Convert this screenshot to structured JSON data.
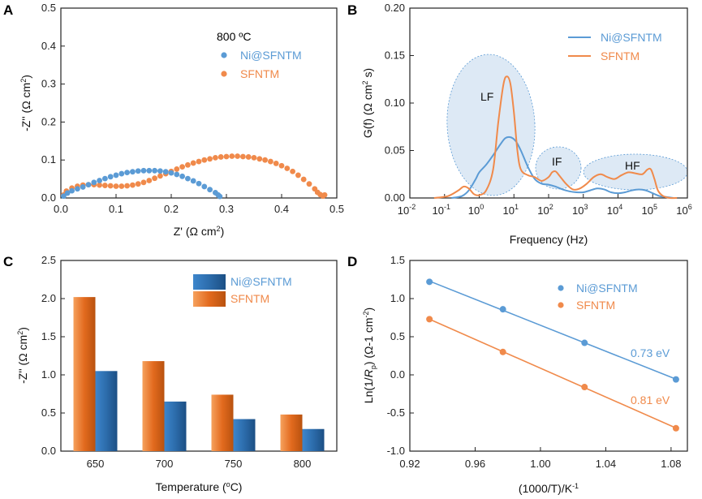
{
  "colors": {
    "ni": "#5b9bd5",
    "sf": "#f08a4b",
    "region": "#dde9f5",
    "bar_blue": "#2e6fb0",
    "bar_orange": "#e8752a"
  },
  "chart_data": [
    {
      "panel": "A",
      "type": "scatter",
      "xlabel": "Z' (Ω cm",
      "xlabel_sup": "2",
      "xlabel_end": ")",
      "ylabel": "-Z'' (Ω cm",
      "ylabel_sup": "2",
      "ylabel_end": ")",
      "xlim": [
        0,
        0.5
      ],
      "ylim": [
        0,
        0.5
      ],
      "xticks": [
        0,
        0.1,
        0.2,
        0.3,
        0.4,
        0.5
      ],
      "xticklabels": [
        "0.0",
        "0.1",
        "0.2",
        "0.3",
        "0.4",
        "0.5"
      ],
      "yticks": [
        0,
        0.1,
        0.2,
        0.3,
        0.4,
        0.5
      ],
      "yticklabels": [
        "0.0",
        "0.1",
        "0.2",
        "0.3",
        "0.4",
        "0.5"
      ],
      "legend_title": "800 ºC",
      "series": [
        {
          "name": "Ni@SFNTM",
          "color": "#5b9bd5",
          "points": [
            [
              0.005,
              0.005
            ],
            [
              0.012,
              0.013
            ],
            [
              0.02,
              0.019
            ],
            [
              0.03,
              0.024
            ],
            [
              0.04,
              0.029
            ],
            [
              0.05,
              0.035
            ],
            [
              0.06,
              0.041
            ],
            [
              0.07,
              0.046
            ],
            [
              0.08,
              0.051
            ],
            [
              0.09,
              0.056
            ],
            [
              0.1,
              0.06
            ],
            [
              0.11,
              0.064
            ],
            [
              0.12,
              0.067
            ],
            [
              0.13,
              0.069
            ],
            [
              0.14,
              0.071
            ],
            [
              0.15,
              0.072
            ],
            [
              0.16,
              0.072
            ],
            [
              0.17,
              0.072
            ],
            [
              0.18,
              0.071
            ],
            [
              0.19,
              0.069
            ],
            [
              0.2,
              0.066
            ],
            [
              0.21,
              0.062
            ],
            [
              0.22,
              0.057
            ],
            [
              0.23,
              0.051
            ],
            [
              0.24,
              0.045
            ],
            [
              0.25,
              0.038
            ],
            [
              0.26,
              0.03
            ],
            [
              0.27,
              0.022
            ],
            [
              0.28,
              0.014
            ],
            [
              0.285,
              0.008
            ],
            [
              0.288,
              0.004
            ]
          ]
        },
        {
          "name": "SFNTM",
          "color": "#f08a4b",
          "points": [
            [
              0.005,
              0.008
            ],
            [
              0.01,
              0.018
            ],
            [
              0.02,
              0.026
            ],
            [
              0.03,
              0.031
            ],
            [
              0.04,
              0.034
            ],
            [
              0.05,
              0.035
            ],
            [
              0.06,
              0.035
            ],
            [
              0.07,
              0.034
            ],
            [
              0.08,
              0.033
            ],
            [
              0.09,
              0.032
            ],
            [
              0.1,
              0.031
            ],
            [
              0.11,
              0.031
            ],
            [
              0.12,
              0.032
            ],
            [
              0.13,
              0.034
            ],
            [
              0.14,
              0.037
            ],
            [
              0.15,
              0.041
            ],
            [
              0.16,
              0.046
            ],
            [
              0.17,
              0.052
            ],
            [
              0.18,
              0.058
            ],
            [
              0.19,
              0.064
            ],
            [
              0.2,
              0.07
            ],
            [
              0.21,
              0.076
            ],
            [
              0.22,
              0.082
            ],
            [
              0.23,
              0.087
            ],
            [
              0.24,
              0.092
            ],
            [
              0.25,
              0.096
            ],
            [
              0.26,
              0.1
            ],
            [
              0.27,
              0.103
            ],
            [
              0.28,
              0.106
            ],
            [
              0.29,
              0.108
            ],
            [
              0.3,
              0.109
            ],
            [
              0.31,
              0.11
            ],
            [
              0.32,
              0.11
            ],
            [
              0.33,
              0.109
            ],
            [
              0.34,
              0.108
            ],
            [
              0.35,
              0.106
            ],
            [
              0.36,
              0.103
            ],
            [
              0.37,
              0.1
            ],
            [
              0.38,
              0.096
            ],
            [
              0.39,
              0.091
            ],
            [
              0.4,
              0.085
            ],
            [
              0.41,
              0.078
            ],
            [
              0.42,
              0.07
            ],
            [
              0.43,
              0.06
            ],
            [
              0.44,
              0.049
            ],
            [
              0.45,
              0.037
            ],
            [
              0.46,
              0.024
            ],
            [
              0.465,
              0.015
            ],
            [
              0.47,
              0.009
            ],
            [
              0.475,
              0.005
            ],
            [
              0.478,
              0.008
            ]
          ]
        }
      ]
    },
    {
      "panel": "B",
      "type": "line",
      "xscale": "log",
      "xlabel": "Frequency (Hz)",
      "ylabel": "G(f) (Ω cm",
      "ylabel_sup": "2",
      "ylabel_end": " s)",
      "xlim_exp": [
        -2,
        6
      ],
      "ylim": [
        0,
        0.2
      ],
      "xticks_exp": [
        -2,
        -1,
        0,
        1,
        2,
        3,
        4,
        5,
        6
      ],
      "yticks": [
        0,
        0.05,
        0.1,
        0.15,
        0.2
      ],
      "yticklabels": [
        "0.00",
        "0.05",
        "0.10",
        "0.15",
        "0.20"
      ],
      "regions": [
        "LF",
        "IF",
        "HF"
      ],
      "series": [
        {
          "name": "Ni@SFNTM",
          "color": "#5b9bd5",
          "log10x": [
            -0.8,
            -0.5,
            -0.3,
            -0.1,
            0.0,
            0.2,
            0.4,
            0.6,
            0.75,
            0.9,
            1.05,
            1.2,
            1.4,
            1.6,
            1.8,
            2.0,
            2.2,
            2.4,
            2.6,
            2.8,
            3.0,
            3.2,
            3.4,
            3.6,
            3.8,
            4.0,
            4.2,
            4.4,
            4.6,
            4.8,
            5.0,
            5.2,
            5.4,
            5.6
          ],
          "y": [
            0,
            0.002,
            0.008,
            0.02,
            0.027,
            0.035,
            0.045,
            0.056,
            0.063,
            0.064,
            0.06,
            0.05,
            0.033,
            0.02,
            0.015,
            0.014,
            0.012,
            0.009,
            0.007,
            0.006,
            0.006,
            0.008,
            0.01,
            0.009,
            0.006,
            0.005,
            0.006,
            0.008,
            0.009,
            0.008,
            0.005,
            0.002,
            0.001,
            0
          ]
        },
        {
          "name": "SFNTM",
          "color": "#f08a4b",
          "log10x": [
            -1.3,
            -0.9,
            -0.6,
            -0.45,
            -0.3,
            -0.15,
            0.0,
            0.2,
            0.4,
            0.55,
            0.7,
            0.8,
            0.9,
            1.0,
            1.1,
            1.2,
            1.4,
            1.6,
            1.8,
            2.0,
            2.1,
            2.2,
            2.3,
            2.5,
            2.7,
            2.9,
            3.1,
            3.3,
            3.5,
            3.7,
            3.9,
            4.1,
            4.3,
            4.5,
            4.7,
            4.85,
            4.95,
            5.05,
            5.15,
            5.3,
            5.5,
            5.7
          ],
          "y": [
            0,
            0.002,
            0.008,
            0.012,
            0.01,
            0.004,
            0.003,
            0.008,
            0.03,
            0.08,
            0.12,
            0.128,
            0.12,
            0.09,
            0.05,
            0.03,
            0.024,
            0.022,
            0.018,
            0.022,
            0.027,
            0.028,
            0.024,
            0.015,
            0.009,
            0.01,
            0.015,
            0.022,
            0.025,
            0.022,
            0.02,
            0.024,
            0.027,
            0.026,
            0.025,
            0.03,
            0.03,
            0.02,
            0.008,
            0.002,
            0,
            0
          ]
        }
      ]
    },
    {
      "panel": "C",
      "type": "bar",
      "xlabel": "Temperature (",
      "xlabel_sup": "o",
      "xlabel_end": "C)",
      "ylabel": "-Z'' (Ω cm",
      "ylabel_sup": "2",
      "ylabel_end": ")",
      "ylim": [
        0,
        2.5
      ],
      "yticks": [
        0,
        0.5,
        1.0,
        1.5,
        2.0,
        2.5
      ],
      "yticklabels": [
        "0.0",
        "0.5",
        "1.0",
        "1.5",
        "2.0",
        "2.5"
      ],
      "categories": [
        "650",
        "700",
        "750",
        "800"
      ],
      "series": [
        {
          "name": "SFNTM",
          "color": "#e8752a",
          "values": [
            2.02,
            1.18,
            0.74,
            0.48
          ]
        },
        {
          "name": "Ni@SFNTM",
          "color": "#2e6fb0",
          "values": [
            1.05,
            0.65,
            0.42,
            0.29
          ]
        }
      ]
    },
    {
      "panel": "D",
      "type": "scatter",
      "xlabel": "(1000/T)/K",
      "xlabel_sup": "-1",
      "ylabel_pre": "Ln(1/",
      "ylabel_it": "R",
      "ylabel_sub": "p",
      "ylabel_mid": ") (Ω-1 cm",
      "ylabel_sup": "-2",
      "ylabel_end": ")",
      "xlim": [
        0.92,
        1.09
      ],
      "ylim": [
        -1.0,
        1.5
      ],
      "xticks": [
        0.92,
        0.96,
        1.0,
        1.04,
        1.08
      ],
      "xticklabels": [
        "0.92",
        "0.96",
        "1.00",
        "1.04",
        "1.08"
      ],
      "yticks": [
        -1.0,
        -0.5,
        0.0,
        0.5,
        1.0,
        1.5
      ],
      "yticklabels": [
        "-1.0",
        "-0.5",
        "0.0",
        "0.5",
        "1.0",
        "1.5"
      ],
      "series": [
        {
          "name": "Ni@SFNTM",
          "color": "#5b9bd5",
          "x": [
            0.932,
            0.977,
            1.027,
            1.083
          ],
          "y": [
            1.22,
            0.86,
            0.42,
            -0.06
          ],
          "annotation": "0.73 eV"
        },
        {
          "name": "SFNTM",
          "color": "#f08a4b",
          "x": [
            0.932,
            0.977,
            1.027,
            1.083
          ],
          "y": [
            0.73,
            0.3,
            -0.16,
            -0.7
          ],
          "annotation": "0.81 eV"
        }
      ]
    }
  ]
}
